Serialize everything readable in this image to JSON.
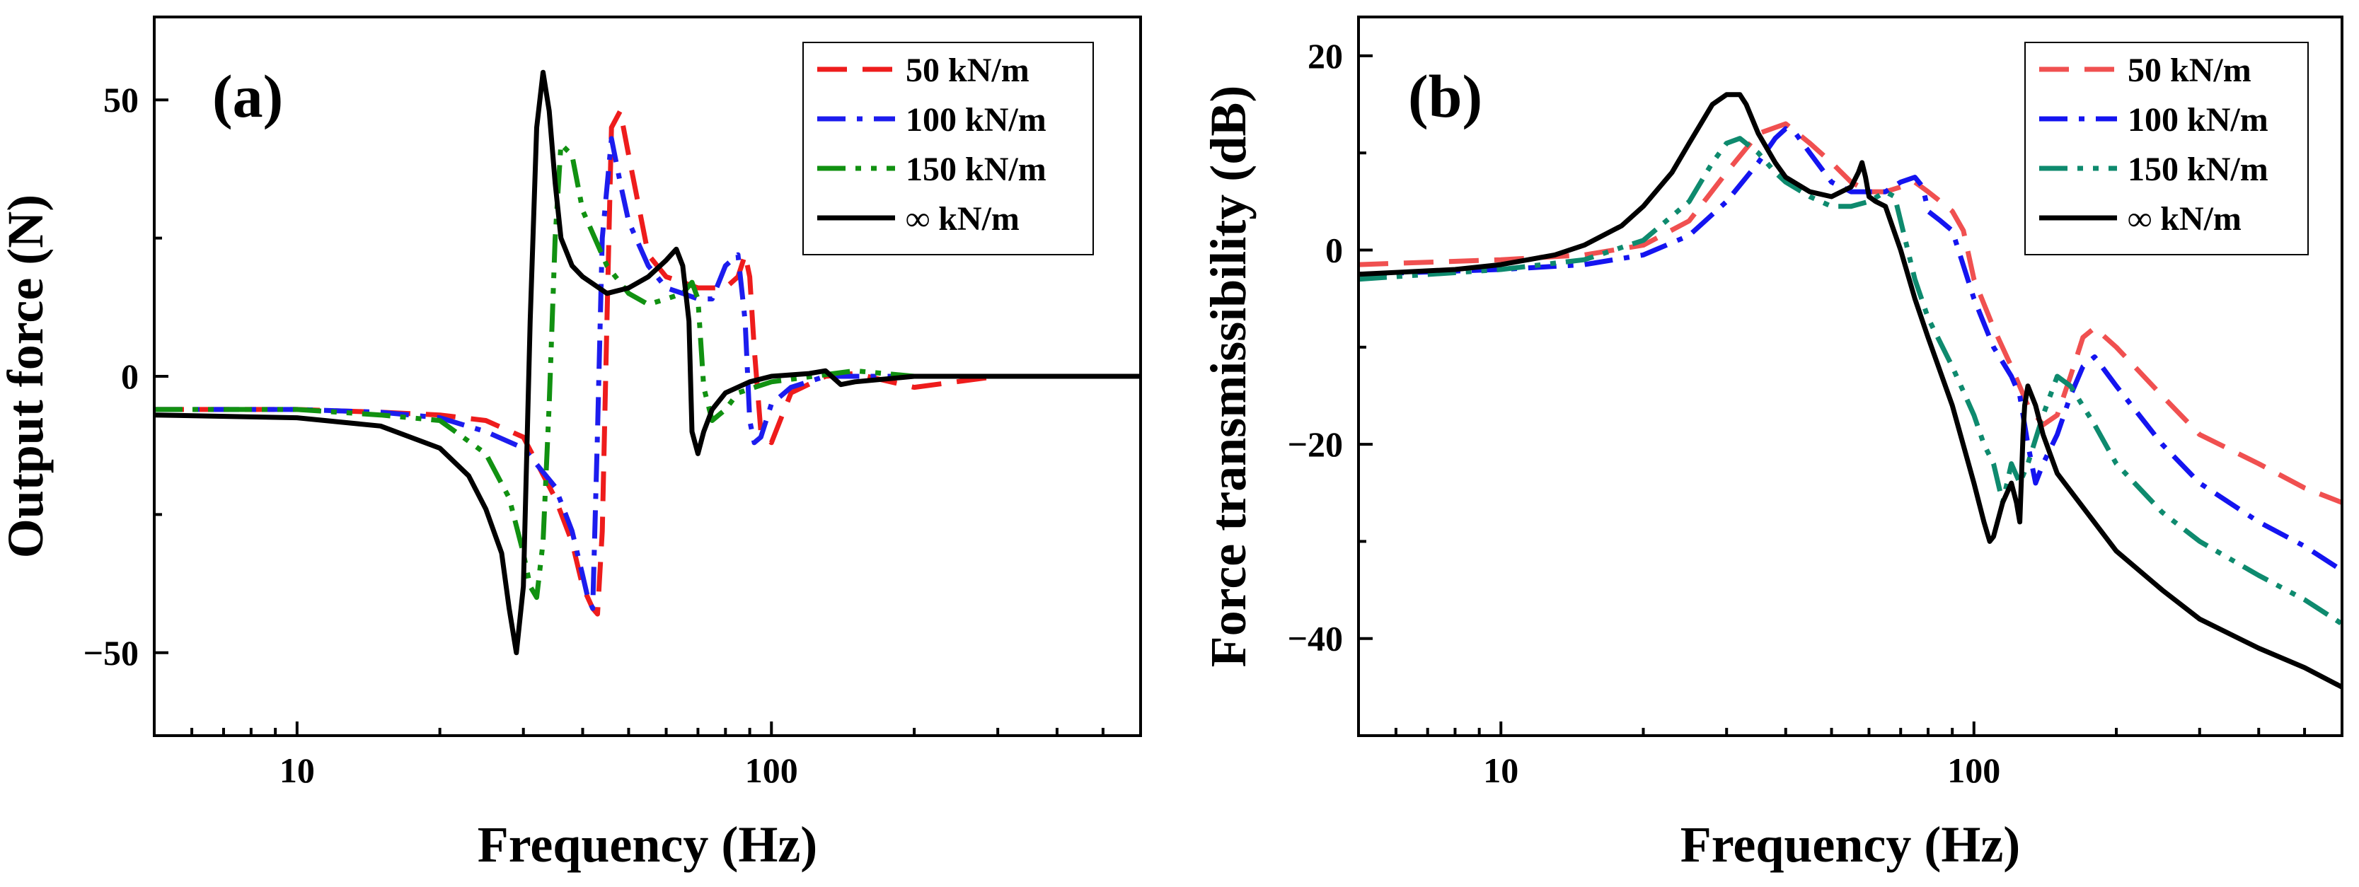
{
  "chart_data": [
    {
      "type": "line",
      "panel_label": "(a)",
      "xlabel": "Frequency (Hz)",
      "ylabel": "Output force (N)",
      "xscale": "log",
      "xlim": [
        5,
        600
      ],
      "ylim": [
        -65,
        65
      ],
      "x_ticks": [
        10,
        100
      ],
      "x_tick_labels": [
        "10",
        "100"
      ],
      "y_ticks": [
        -50,
        0,
        50
      ],
      "y_tick_labels": [
        "−50",
        "0",
        "50"
      ],
      "legend_position": "top-right",
      "series": [
        {
          "name": "50 kN/m",
          "color": "#ee1c1c",
          "dash": "dash",
          "x": [
            5,
            10,
            15,
            20,
            25,
            30,
            35,
            38,
            40,
            42,
            43,
            44,
            45,
            46,
            48,
            50,
            55,
            60,
            65,
            70,
            80,
            85,
            88,
            90,
            92,
            95,
            100,
            110,
            130,
            150,
            200,
            300,
            600
          ],
          "y": [
            -6,
            -6,
            -6.5,
            -7,
            -8,
            -11,
            -22,
            -30,
            -38,
            -42,
            -43,
            -28,
            10,
            45,
            48,
            40,
            22,
            18,
            17,
            16,
            16,
            18,
            22,
            18,
            5,
            -10,
            -12,
            -3,
            0,
            0.5,
            -2,
            0,
            0
          ]
        },
        {
          "name": "100 kN/m",
          "color": "#1c1cee",
          "dash": "dashdot",
          "x": [
            5,
            10,
            15,
            20,
            25,
            30,
            35,
            38,
            40,
            41,
            42,
            43,
            44,
            46,
            48,
            50,
            55,
            60,
            65,
            70,
            75,
            80,
            85,
            88,
            90,
            92,
            95,
            100,
            110,
            130,
            200,
            600
          ],
          "y": [
            -6,
            -6,
            -6.5,
            -7.5,
            -10,
            -13,
            -20,
            -28,
            -36,
            -40,
            -42,
            -10,
            25,
            43,
            35,
            28,
            20,
            16,
            15,
            14,
            14,
            20,
            22,
            10,
            -8,
            -12,
            -11,
            -5,
            -2,
            0,
            0,
            0
          ]
        },
        {
          "name": "150 kN/m",
          "color": "#119111",
          "dash": "dashdotdot",
          "x": [
            5,
            10,
            15,
            20,
            25,
            28,
            30,
            31,
            32,
            33,
            34,
            35,
            36,
            38,
            40,
            45,
            50,
            55,
            60,
            65,
            68,
            70,
            72,
            75,
            80,
            85,
            100,
            150,
            200,
            600
          ],
          "y": [
            -6,
            -6,
            -7,
            -8,
            -14,
            -22,
            -32,
            -38,
            -40,
            -30,
            -5,
            25,
            42,
            40,
            30,
            20,
            15,
            13,
            14,
            15,
            17,
            14,
            -2,
            -8,
            -6,
            -3,
            -1,
            1,
            0,
            0
          ]
        },
        {
          "name": "∞ kN/m",
          "color": "#000000",
          "dash": "solid",
          "x": [
            5,
            10,
            15,
            20,
            23,
            25,
            27,
            28,
            29,
            30,
            31,
            32,
            33,
            34,
            35,
            36,
            38,
            40,
            45,
            50,
            55,
            60,
            63,
            65,
            67,
            68,
            70,
            72,
            75,
            80,
            90,
            100,
            120,
            130,
            140,
            150,
            200,
            600
          ],
          "y": [
            -7,
            -7.5,
            -9,
            -13,
            -18,
            -24,
            -32,
            -42,
            -50,
            -38,
            10,
            45,
            55,
            48,
            35,
            25,
            20,
            18,
            15,
            16,
            18,
            21,
            23,
            20,
            10,
            -10,
            -14,
            -10,
            -6,
            -3,
            -1,
            0,
            0.5,
            1,
            -1.5,
            -1,
            0,
            0
          ]
        }
      ]
    },
    {
      "type": "line",
      "panel_label": "(b)",
      "xlabel": "Frequency (Hz)",
      "ylabel": "Force transmissibility (dB)",
      "xscale": "log",
      "xlim": [
        5,
        600
      ],
      "ylim": [
        -50,
        24
      ],
      "x_ticks": [
        10,
        100
      ],
      "x_tick_labels": [
        "10",
        "100"
      ],
      "y_ticks": [
        -40,
        -20,
        0,
        20
      ],
      "y_tick_labels": [
        "−40",
        "−20",
        "0",
        "20"
      ],
      "legend_position": "top-right",
      "series": [
        {
          "name": "50 kN/m",
          "color": "#f05050",
          "dash": "dash",
          "x": [
            5,
            10,
            15,
            20,
            25,
            30,
            35,
            40,
            45,
            50,
            55,
            60,
            65,
            70,
            75,
            80,
            85,
            90,
            95,
            100,
            110,
            120,
            130,
            140,
            150,
            160,
            170,
            180,
            200,
            250,
            300,
            400,
            500,
            600
          ],
          "y": [
            -1.5,
            -1,
            -0.5,
            0.5,
            3,
            8,
            12,
            13,
            11,
            9,
            7,
            6,
            6,
            6.5,
            7,
            6,
            5,
            4,
            2,
            -3,
            -8,
            -12,
            -16,
            -18,
            -17,
            -13,
            -9,
            -8,
            -10,
            -15,
            -19,
            -22,
            -24.5,
            -26
          ]
        },
        {
          "name": "100 kN/m",
          "color": "#1414f0",
          "dash": "dashdot",
          "x": [
            5,
            10,
            15,
            20,
            25,
            30,
            35,
            38,
            40,
            42,
            45,
            50,
            55,
            60,
            65,
            70,
            75,
            78,
            80,
            85,
            90,
            100,
            110,
            120,
            125,
            130,
            135,
            140,
            150,
            160,
            170,
            180,
            200,
            250,
            300,
            400,
            500,
            600
          ],
          "y": [
            -2.5,
            -2,
            -1.5,
            -0.5,
            1.5,
            5,
            9,
            11.5,
            12.5,
            12,
            10,
            7,
            6,
            6,
            6,
            7,
            7.5,
            6.5,
            4,
            3,
            2,
            -5,
            -10,
            -13,
            -15,
            -20,
            -24,
            -22,
            -19,
            -15,
            -12,
            -11,
            -14,
            -20,
            -24,
            -28,
            -30.5,
            -33
          ]
        },
        {
          "name": "150 kN/m",
          "color": "#0e8a6e",
          "dash": "dashdotdot",
          "x": [
            5,
            10,
            15,
            20,
            25,
            28,
            30,
            32,
            35,
            38,
            40,
            45,
            50,
            55,
            60,
            65,
            68,
            70,
            75,
            80,
            90,
            100,
            105,
            110,
            115,
            120,
            125,
            130,
            140,
            150,
            160,
            180,
            200,
            250,
            300,
            400,
            500,
            600
          ],
          "y": [
            -3,
            -2,
            -1,
            1,
            5,
            9,
            11,
            11.5,
            10,
            8,
            7,
            5.5,
            4.5,
            4.5,
            5,
            6,
            5.5,
            3,
            -3,
            -7,
            -12,
            -17,
            -20,
            -22,
            -26,
            -22,
            -24,
            -22,
            -17,
            -13,
            -14,
            -18,
            -22,
            -27,
            -30,
            -33.5,
            -36,
            -38.5
          ]
        },
        {
          "name": "∞ kN/m",
          "color": "#000000",
          "dash": "solid",
          "x": [
            5,
            8,
            10,
            13,
            15,
            18,
            20,
            23,
            25,
            28,
            30,
            32,
            33,
            35,
            38,
            40,
            45,
            50,
            55,
            57,
            58,
            59,
            60,
            62,
            65,
            70,
            75,
            80,
            90,
            100,
            105,
            108,
            110,
            115,
            120,
            123,
            125,
            127,
            128,
            130,
            135,
            140,
            150,
            200,
            250,
            300,
            400,
            500,
            600
          ],
          "y": [
            -2.5,
            -2,
            -1.5,
            -0.5,
            0.5,
            2.5,
            4.5,
            8,
            11,
            15,
            16,
            16,
            15,
            12,
            9,
            7.5,
            6,
            5.5,
            6.5,
            8,
            9,
            7.5,
            5.5,
            5,
            4.5,
            0,
            -5,
            -9,
            -16,
            -24,
            -28,
            -30,
            -29.5,
            -26,
            -24,
            -26,
            -28,
            -19,
            -16,
            -14,
            -16,
            -19,
            -23,
            -31,
            -35,
            -38,
            -41,
            -43,
            -45
          ]
        }
      ]
    }
  ]
}
